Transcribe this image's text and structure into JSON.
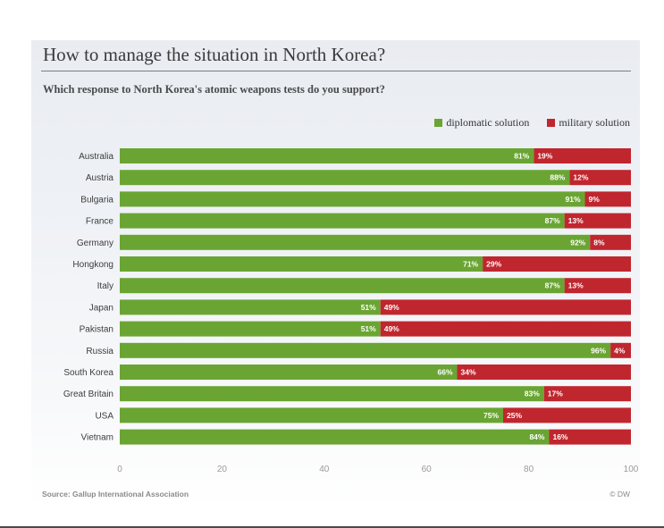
{
  "title": "How to manage the situation in North Korea?",
  "subtitle": "Which response to North Korea's atomic weapons tests do you support?",
  "source": "Source: Gallup International Association",
  "credit": "© DW",
  "colors": {
    "diplomatic": "#6aa533",
    "military": "#c0262e"
  },
  "chart_data": {
    "type": "bar",
    "orientation": "horizontal",
    "stacked": true,
    "title": "How to manage the situation in North Korea?",
    "subtitle": "Which response to North Korea's atomic weapons tests do you support?",
    "categories": [
      "Australia",
      "Austria",
      "Bulgaria",
      "France",
      "Germany",
      "Hongkong",
      "Italy",
      "Japan",
      "Pakistan",
      "Russia",
      "South Korea",
      "Great Britain",
      "USA",
      "Vietnam"
    ],
    "series": [
      {
        "name": "diplomatic solution",
        "color": "#6aa533",
        "values": [
          81,
          88,
          91,
          87,
          92,
          71,
          87,
          51,
          51,
          96,
          66,
          83,
          75,
          84
        ]
      },
      {
        "name": "military solution",
        "color": "#c0262e",
        "values": [
          19,
          12,
          9,
          13,
          8,
          29,
          13,
          49,
          49,
          4,
          34,
          17,
          25,
          16
        ]
      }
    ],
    "value_suffix": "%",
    "xlim": [
      0,
      100
    ],
    "xticks": [
      0,
      20,
      40,
      60,
      80,
      100
    ],
    "xlabel": "",
    "ylabel": "",
    "legend_position": "top-right",
    "grid": false
  }
}
